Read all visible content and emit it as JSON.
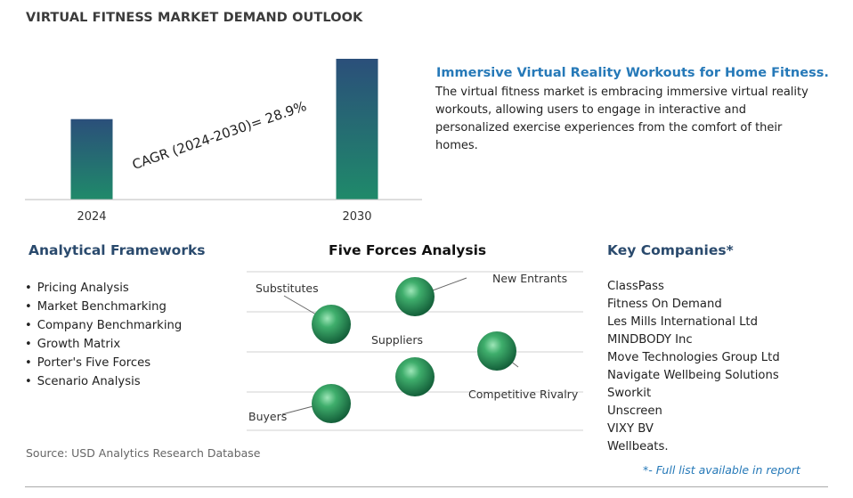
{
  "title": "VIRTUAL FITNESS MARKET DEMAND OUTLOOK",
  "chart_data": {
    "type": "bar",
    "categories": [
      "2024",
      "2030"
    ],
    "values": [
      1,
      1.75
    ],
    "annotation": "CAGR (2024-2030)=  28.9%",
    "bar_colors": [
      "#2a6e7a",
      "#1f7a60"
    ]
  },
  "highlight": {
    "heading": "Immersive Virtual Reality Workouts for Home Fitness.",
    "body": "The virtual fitness market is embracing immersive virtual reality workouts, allowing users to engage in interactive and personalized exercise experiences from the comfort of their homes."
  },
  "analytical_frameworks": {
    "title": "Analytical Frameworks",
    "items": [
      "Pricing Analysis",
      "Market Benchmarking",
      "Company Benchmarking",
      "Growth Matrix",
      "Porter's Five Forces",
      "Scenario Analysis"
    ]
  },
  "five_forces": {
    "title": "Five Forces Analysis",
    "labels": {
      "substitutes": "Substitutes",
      "new_entrants": "New Entrants",
      "suppliers": "Suppliers",
      "competitive_rivalry": "Competitive Rivalry",
      "buyers": "Buyers"
    }
  },
  "key_companies": {
    "title": "Key Companies*",
    "items": [
      "ClassPass",
      "Fitness On Demand",
      "Les Mills International Ltd",
      "MINDBODY Inc",
      "Move Technologies Group Ltd",
      "Navigate Wellbeing Solutions",
      "Sworkit",
      "Unscreen",
      "VIXY BV",
      "Wellbeats."
    ],
    "note": "*- Full list available in report"
  },
  "source": "Source: USD Analytics Research Database",
  "colors": {
    "accent_blue": "#2679b8",
    "heading_navy": "#2a4a6d",
    "sphere_green": "#2e9a5c"
  }
}
